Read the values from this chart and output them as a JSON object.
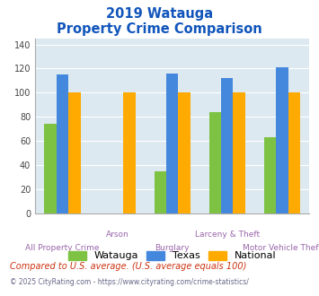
{
  "title_line1": "2019 Watauga",
  "title_line2": "Property Crime Comparison",
  "categories": [
    "All Property Crime",
    "Arson",
    "Burglary",
    "Larceny & Theft",
    "Motor Vehicle Theft"
  ],
  "series": {
    "Watauga": [
      74,
      0,
      35,
      84,
      63
    ],
    "Texas": [
      115,
      0,
      116,
      112,
      121
    ],
    "National": [
      100,
      100,
      100,
      100,
      100
    ]
  },
  "colors": {
    "Watauga": "#7dc243",
    "Texas": "#4488dd",
    "National": "#ffaa00"
  },
  "ylim": [
    0,
    145
  ],
  "yticks": [
    0,
    20,
    40,
    60,
    80,
    100,
    120,
    140
  ],
  "plot_bg": "#dce9f0",
  "fig_bg": "#ffffff",
  "title_color": "#1155bb",
  "xlabel_color_top": "#9966aa",
  "xlabel_color_bot": "#9966aa",
  "grid_color": "#ffffff",
  "footnote": "Compared to U.S. average. (U.S. average equals 100)",
  "copyright": "© 2025 CityRating.com - https://www.cityrating.com/crime-statistics/",
  "footnote_color": "#cc3311",
  "copyright_color": "#666688"
}
